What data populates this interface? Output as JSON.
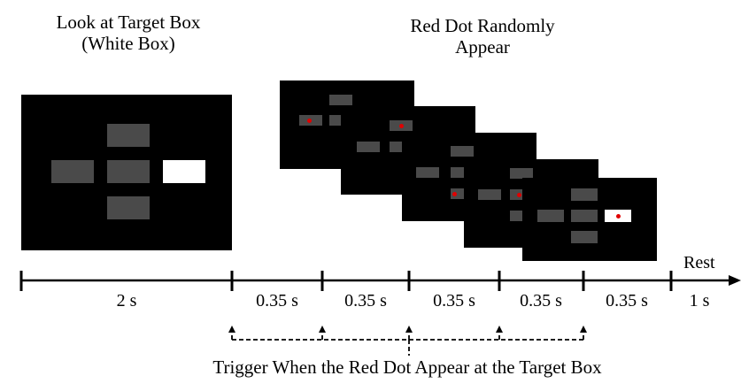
{
  "titles": {
    "left_line1": "Look at Target Box",
    "left_line2": "(White Box)",
    "right_line1": "Red Dot Randomly",
    "right_line2": "Appear"
  },
  "timeline": {
    "segments": [
      "2 s",
      "0.35 s",
      "0.35 s",
      "0.35 s",
      "0.35 s",
      "0.35 s",
      "1 s"
    ],
    "rest_label": "Rest"
  },
  "caption": "Trigger When the Red Dot Appear at the Target Box",
  "colors": {
    "panel": "#000000",
    "box": "#4a4a4a",
    "target_box": "#ffffff",
    "red_dot": "#e00000"
  }
}
